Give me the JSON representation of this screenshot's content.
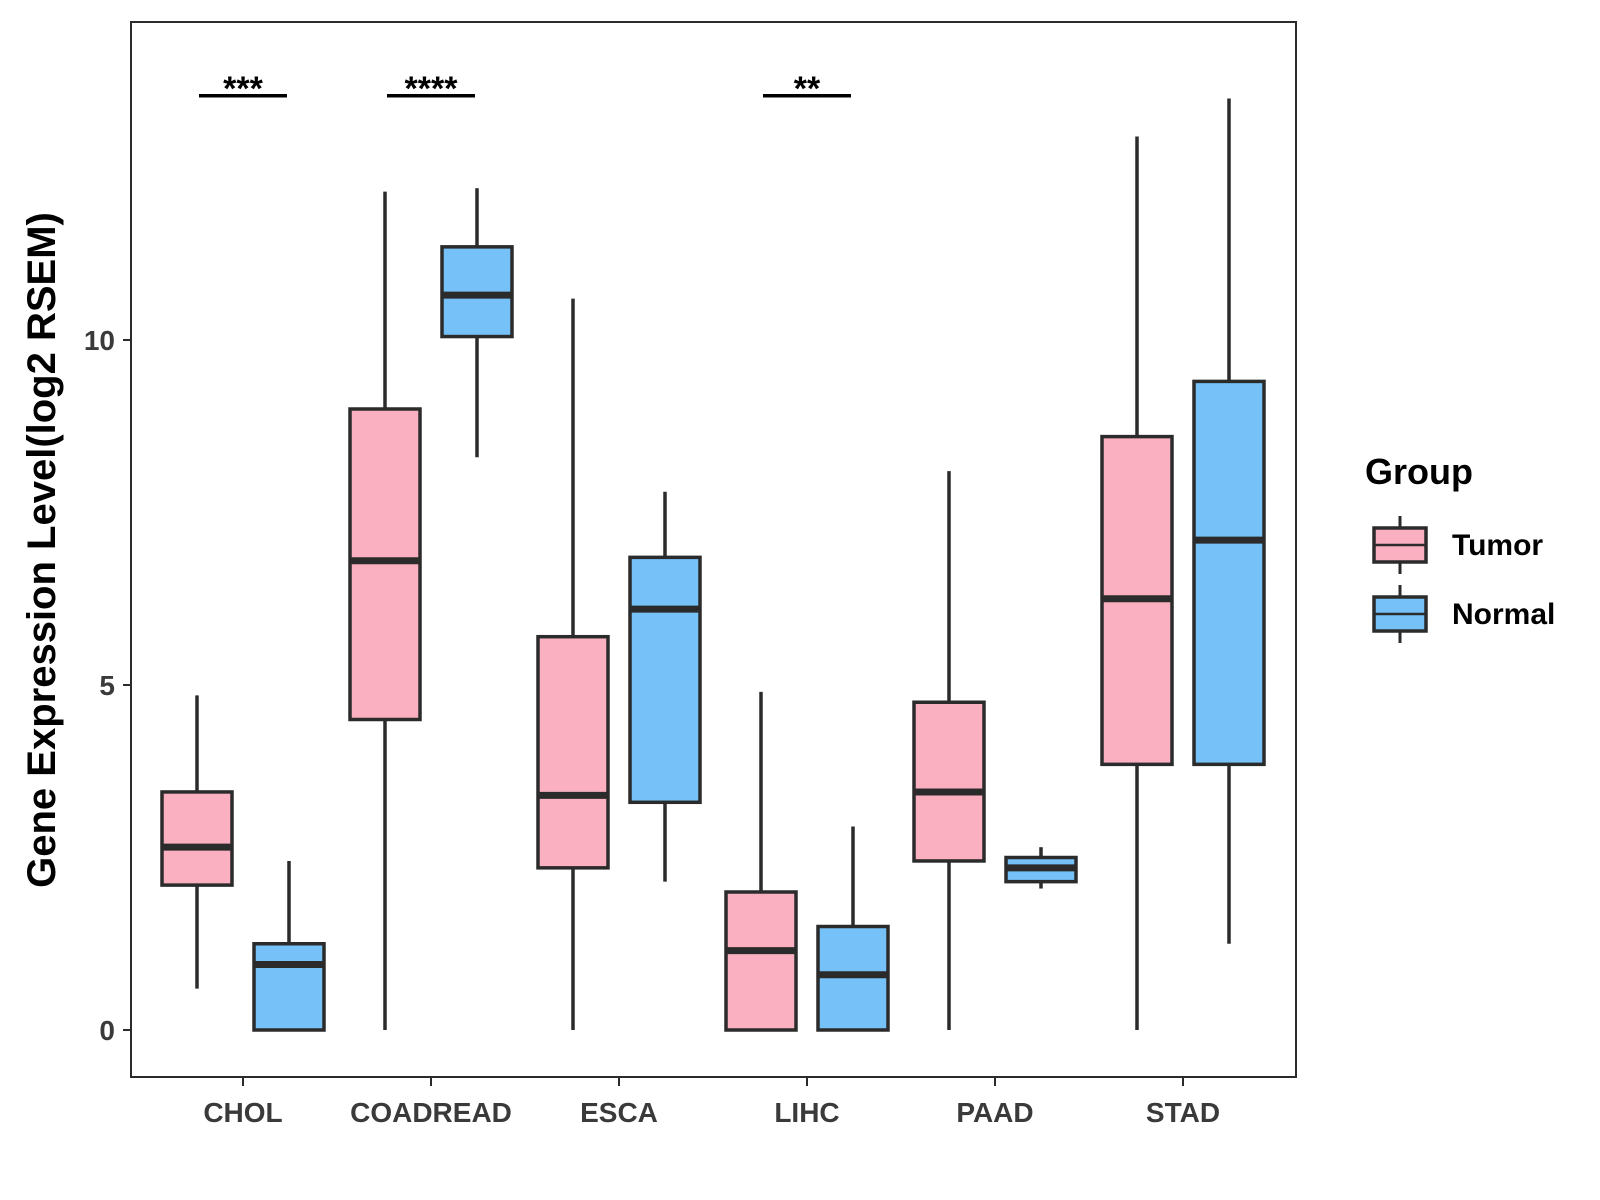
{
  "chart_data": {
    "type": "boxplot",
    "title": "",
    "xlabel": "",
    "ylabel": "Gene Expression Level(log2 RSEM)",
    "ylim": [
      -0.7,
      14.6
    ],
    "yticks": [
      0,
      5,
      10
    ],
    "categories": [
      "CHOL",
      "COADREAD",
      "ESCA",
      "LIHC",
      "PAAD",
      "STAD"
    ],
    "legend": {
      "title": "Group",
      "position": "right",
      "entries": [
        {
          "name": "Tumor",
          "color": "#FBB0C2"
        },
        {
          "name": "Normal",
          "color": "#76C1F8"
        }
      ]
    },
    "series": [
      {
        "name": "Tumor",
        "color": "#FBB0C2",
        "boxes": [
          {
            "category": "CHOL",
            "low": 0.6,
            "q1": 2.1,
            "median": 2.65,
            "q3": 3.45,
            "high": 4.85
          },
          {
            "category": "COADREAD",
            "low": 0.0,
            "q1": 4.5,
            "median": 6.8,
            "q3": 9.0,
            "high": 12.15
          },
          {
            "category": "ESCA",
            "low": 0.0,
            "q1": 2.35,
            "median": 3.4,
            "q3": 5.7,
            "high": 10.6
          },
          {
            "category": "LIHC",
            "low": 0.0,
            "q1": 0.0,
            "median": 1.15,
            "q3": 2.0,
            "high": 4.9
          },
          {
            "category": "PAAD",
            "low": 0.0,
            "q1": 2.45,
            "median": 3.45,
            "q3": 4.75,
            "high": 8.1
          },
          {
            "category": "STAD",
            "low": 0.0,
            "q1": 3.85,
            "median": 6.25,
            "q3": 8.6,
            "high": 12.95
          }
        ]
      },
      {
        "name": "Normal",
        "color": "#76C1F8",
        "boxes": [
          {
            "category": "CHOL",
            "low": 0.0,
            "q1": 0.0,
            "median": 0.95,
            "q3": 1.25,
            "high": 2.45
          },
          {
            "category": "COADREAD",
            "low": 8.3,
            "q1": 10.05,
            "median": 10.65,
            "q3": 11.35,
            "high": 12.2
          },
          {
            "category": "ESCA",
            "low": 2.15,
            "q1": 3.3,
            "median": 6.1,
            "q3": 6.85,
            "high": 7.8
          },
          {
            "category": "LIHC",
            "low": 0.0,
            "q1": 0.0,
            "median": 0.8,
            "q3": 1.5,
            "high": 2.95
          },
          {
            "category": "PAAD",
            "low": 2.05,
            "q1": 2.15,
            "median": 2.35,
            "q3": 2.5,
            "high": 2.65
          },
          {
            "category": "STAD",
            "low": 1.25,
            "q1": 3.85,
            "median": 7.1,
            "q3": 9.4,
            "high": 13.5
          }
        ]
      }
    ],
    "significance": [
      {
        "category": "CHOL",
        "label": "***",
        "y": 13.8
      },
      {
        "category": "COADREAD",
        "label": "****",
        "y": 13.8
      },
      {
        "category": "LIHC",
        "label": "**",
        "y": 13.8
      }
    ]
  }
}
